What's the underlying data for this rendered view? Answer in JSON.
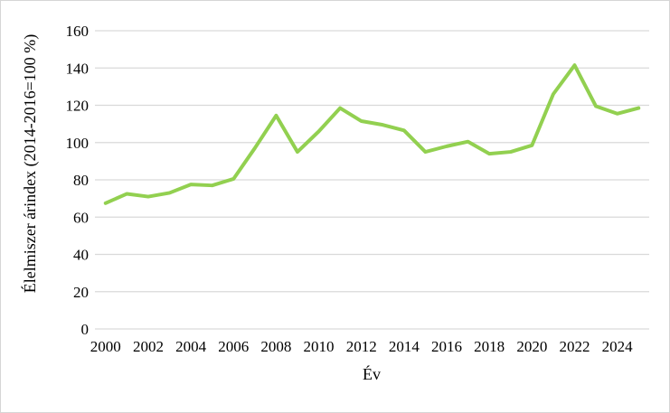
{
  "chart_data": {
    "type": "line",
    "title": "",
    "xlabel": "Év",
    "ylabel": "Élelmiszer árindex (2014-2016=100 %)",
    "x": [
      2000,
      2001,
      2002,
      2003,
      2004,
      2005,
      2006,
      2007,
      2008,
      2009,
      2010,
      2011,
      2012,
      2013,
      2014,
      2015,
      2016,
      2017,
      2018,
      2019,
      2020,
      2021,
      2022,
      2023,
      2024,
      2025
    ],
    "series": [
      {
        "name": "Élelmiszer árindex",
        "color": "#92d050",
        "values": [
          67.5,
          72.5,
          71,
          73,
          77.5,
          77,
          80.5,
          97,
          114.5,
          95,
          106,
          118.5,
          111.5,
          109.5,
          106.5,
          95,
          98,
          100.5,
          94,
          95,
          98.5,
          126,
          141.5,
          119.5,
          115.5,
          118.5
        ]
      }
    ],
    "ylim": [
      0,
      160
    ],
    "ytick_step": 20,
    "ytick_labels": [
      "0",
      "20",
      "40",
      "60",
      "80",
      "100",
      "120",
      "140",
      "160"
    ],
    "xtick_labels": [
      "2000",
      "2002",
      "2004",
      "2006",
      "2008",
      "2010",
      "2012",
      "2014",
      "2016",
      "2018",
      "2020",
      "2022",
      "2024"
    ],
    "grid": "horizontal",
    "grid_color": "#d9d9d9",
    "text_color": "#000000",
    "background": "#ffffff",
    "legend": "none"
  }
}
